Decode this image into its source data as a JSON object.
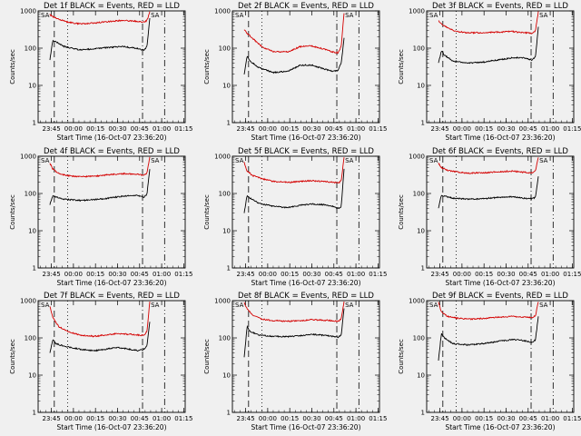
{
  "chart_data": [
    {
      "type": "line",
      "title": "Det 1f BLACK = Events, RED = LLD",
      "xlabel": "Start Time (16-Oct-07 23:36:20)",
      "ylabel": "Counts/sec",
      "ylog": true,
      "ylim": [
        1,
        1000
      ],
      "ytick_labels": [
        "1",
        "10",
        "100",
        "1000"
      ],
      "xtick_labels": [
        "23:45",
        "00:00",
        "00:15",
        "00:30",
        "00:45",
        "01:00",
        "01:15"
      ],
      "markers": [
        "SA",
        "SA"
      ],
      "series": [
        {
          "color": "#000000",
          "x": [
            0,
            2,
            4,
            10,
            20,
            30,
            40,
            50,
            58,
            64,
            66,
            68
          ],
          "values": [
            50,
            160,
            150,
            110,
            90,
            95,
            105,
            110,
            100,
            90,
            110,
            700
          ]
        },
        {
          "color": "#d40000",
          "x": [
            0,
            2,
            6,
            12,
            20,
            30,
            40,
            50,
            58,
            64,
            66,
            68
          ],
          "values": [
            800,
            700,
            600,
            500,
            450,
            470,
            520,
            560,
            530,
            500,
            550,
            1000
          ]
        }
      ]
    },
    {
      "type": "line",
      "title": "Det 2f BLACK = Events, RED = LLD",
      "xlabel": "Start Time (16-Oct-07 23:36:20)",
      "ylabel": "Counts/sec",
      "ylog": true,
      "ylim": [
        1,
        1000
      ],
      "ytick_labels": [
        "1",
        "10",
        "100",
        "1000"
      ],
      "xtick_labels": [
        "23:45",
        "00:00",
        "00:15",
        "00:30",
        "00:45",
        "01:00",
        "01:15"
      ],
      "markers": [
        "SA",
        "SA"
      ],
      "series": [
        {
          "color": "#000000",
          "x": [
            0,
            2,
            4,
            10,
            20,
            30,
            38,
            46,
            54,
            60,
            64,
            66,
            68
          ],
          "values": [
            20,
            60,
            45,
            30,
            22,
            24,
            35,
            35,
            28,
            24,
            26,
            40,
            200
          ]
        },
        {
          "color": "#d40000",
          "x": [
            0,
            2,
            6,
            12,
            20,
            30,
            38,
            46,
            54,
            60,
            64,
            66,
            68
          ],
          "values": [
            320,
            250,
            180,
            110,
            80,
            80,
            110,
            115,
            95,
            80,
            75,
            110,
            1000
          ]
        }
      ]
    },
    {
      "type": "line",
      "title": "Det 3f BLACK = Events, RED = LLD",
      "xlabel": "Start Time (16-Oct-07 23:36:20)",
      "ylabel": "Counts/sec",
      "ylog": true,
      "ylim": [
        1,
        1000
      ],
      "ytick_labels": [
        "1",
        "10",
        "100",
        "1000"
      ],
      "xtick_labels": [
        "23:45",
        "00:00",
        "00:15",
        "00:30",
        "00:45",
        "01:00",
        "01:15"
      ],
      "markers": [
        "SA",
        "SA"
      ],
      "series": [
        {
          "color": "#000000",
          "x": [
            0,
            2,
            4,
            10,
            20,
            30,
            40,
            50,
            58,
            64,
            66,
            68
          ],
          "values": [
            40,
            85,
            65,
            45,
            40,
            42,
            48,
            55,
            55,
            48,
            60,
            400
          ]
        },
        {
          "color": "#d40000",
          "x": [
            0,
            2,
            6,
            12,
            20,
            30,
            40,
            50,
            58,
            64,
            66,
            68
          ],
          "values": [
            550,
            450,
            350,
            280,
            260,
            260,
            270,
            280,
            260,
            250,
            300,
            1000
          ]
        }
      ]
    },
    {
      "type": "line",
      "title": "Det 4f BLACK = Events, RED = LLD",
      "xlabel": "Start Time (16-Oct-07 23:36:20)",
      "ylabel": "Counts/sec",
      "ylog": true,
      "ylim": [
        1,
        1000
      ],
      "ytick_labels": [
        "1",
        "10",
        "100",
        "1000"
      ],
      "xtick_labels": [
        "23:45",
        "00:00",
        "00:15",
        "00:30",
        "00:45",
        "01:00",
        "01:15"
      ],
      "markers": [
        "SA",
        "SA"
      ],
      "series": [
        {
          "color": "#000000",
          "x": [
            0,
            2,
            4,
            10,
            20,
            30,
            40,
            50,
            58,
            64,
            66,
            68
          ],
          "values": [
            50,
            90,
            80,
            70,
            65,
            68,
            75,
            85,
            90,
            80,
            95,
            500
          ]
        },
        {
          "color": "#d40000",
          "x": [
            0,
            2,
            6,
            12,
            20,
            30,
            40,
            50,
            58,
            64,
            66,
            68
          ],
          "values": [
            650,
            450,
            350,
            300,
            280,
            290,
            320,
            340,
            330,
            310,
            350,
            1000
          ]
        }
      ]
    },
    {
      "type": "line",
      "title": "Det 5f BLACK = Events, RED = LLD",
      "xlabel": "Start Time (16-Oct-07 23:36:20)",
      "ylabel": "Counts/sec",
      "ylog": true,
      "ylim": [
        1,
        1000
      ],
      "ytick_labels": [
        "1",
        "10",
        "100",
        "1000"
      ],
      "xtick_labels": [
        "23:45",
        "00:00",
        "00:15",
        "00:30",
        "00:45",
        "01:00",
        "01:15"
      ],
      "markers": [
        "SA",
        "SA"
      ],
      "series": [
        {
          "color": "#000000",
          "x": [
            0,
            2,
            4,
            10,
            20,
            30,
            38,
            46,
            54,
            60,
            64,
            66,
            68
          ],
          "values": [
            30,
            90,
            75,
            55,
            45,
            42,
            48,
            52,
            50,
            45,
            40,
            45,
            500
          ]
        },
        {
          "color": "#d40000",
          "x": [
            0,
            2,
            6,
            12,
            20,
            30,
            38,
            46,
            54,
            60,
            64,
            66,
            68
          ],
          "values": [
            700,
            400,
            300,
            250,
            210,
            200,
            210,
            220,
            210,
            200,
            190,
            220,
            1000
          ]
        }
      ]
    },
    {
      "type": "line",
      "title": "Det 6f BLACK = Events, RED = LLD",
      "xlabel": "Start Time (16-Oct-07 23:36:20)",
      "ylabel": "Counts/sec",
      "ylog": true,
      "ylim": [
        1,
        1000
      ],
      "ytick_labels": [
        "1",
        "10",
        "100",
        "1000"
      ],
      "xtick_labels": [
        "23:45",
        "00:00",
        "00:15",
        "00:30",
        "00:45",
        "01:00",
        "01:15"
      ],
      "markers": [
        "SA",
        "SA"
      ],
      "series": [
        {
          "color": "#000000",
          "x": [
            0,
            2,
            4,
            10,
            20,
            30,
            40,
            50,
            58,
            64,
            66,
            68
          ],
          "values": [
            40,
            90,
            85,
            75,
            70,
            72,
            78,
            82,
            75,
            72,
            80,
            300
          ]
        },
        {
          "color": "#d40000",
          "x": [
            0,
            2,
            6,
            12,
            20,
            30,
            40,
            50,
            58,
            64,
            66,
            68
          ],
          "values": [
            650,
            500,
            420,
            380,
            350,
            360,
            380,
            400,
            370,
            360,
            400,
            1000
          ]
        }
      ]
    },
    {
      "type": "line",
      "title": "Det 7f BLACK = Events, RED = LLD",
      "xlabel": "Start Time (16-Oct-07 23:36:20)",
      "ylabel": "Counts/sec",
      "ylog": true,
      "ylim": [
        1,
        1000
      ],
      "ytick_labels": [
        "1",
        "10",
        "100",
        "1000"
      ],
      "xtick_labels": [
        "23:45",
        "00:00",
        "00:15",
        "00:30",
        "00:45",
        "01:00",
        "01:15"
      ],
      "markers": [
        "SA",
        "SA"
      ],
      "series": [
        {
          "color": "#000000",
          "x": [
            0,
            2,
            4,
            10,
            20,
            30,
            38,
            46,
            54,
            60,
            64,
            66,
            68
          ],
          "values": [
            40,
            90,
            70,
            60,
            50,
            45,
            50,
            55,
            50,
            45,
            50,
            60,
            300
          ]
        },
        {
          "color": "#d40000",
          "x": [
            0,
            2,
            6,
            12,
            20,
            30,
            38,
            46,
            54,
            60,
            64,
            66,
            68
          ],
          "values": [
            700,
            350,
            200,
            150,
            120,
            110,
            120,
            130,
            125,
            120,
            115,
            150,
            1000
          ]
        }
      ]
    },
    {
      "type": "line",
      "title": "Det 8f BLACK = Events, RED = LLD",
      "xlabel": "Start Time (16-Oct-07 23:36:20)",
      "ylabel": "Counts/sec",
      "ylog": true,
      "ylim": [
        1,
        1000
      ],
      "ytick_labels": [
        "1",
        "10",
        "100",
        "1000"
      ],
      "xtick_labels": [
        "23:45",
        "00:00",
        "00:15",
        "00:30",
        "00:45",
        "01:00",
        "01:15"
      ],
      "markers": [
        "SA",
        "SA"
      ],
      "series": [
        {
          "color": "#000000",
          "x": [
            0,
            2,
            4,
            10,
            20,
            30,
            38,
            46,
            54,
            60,
            64,
            66,
            68
          ],
          "values": [
            30,
            200,
            150,
            120,
            110,
            108,
            115,
            125,
            118,
            110,
            105,
            120,
            700
          ]
        },
        {
          "color": "#d40000",
          "x": [
            0,
            2,
            6,
            12,
            20,
            30,
            38,
            46,
            54,
            60,
            64,
            66,
            68
          ],
          "values": [
            900,
            600,
            400,
            320,
            290,
            280,
            290,
            310,
            300,
            290,
            280,
            320,
            1000
          ]
        }
      ]
    },
    {
      "type": "line",
      "title": "Det 9f BLACK = Events, RED = LLD",
      "xlabel": "Start Time (16-Oct-07 23:36:20)",
      "ylabel": "Counts/sec",
      "ylog": true,
      "ylim": [
        1,
        1000
      ],
      "ytick_labels": [
        "1",
        "10",
        "100",
        "1000"
      ],
      "xtick_labels": [
        "23:45",
        "00:00",
        "00:15",
        "00:30",
        "00:45",
        "01:00",
        "01:15"
      ],
      "markers": [
        "SA",
        "SA"
      ],
      "series": [
        {
          "color": "#000000",
          "x": [
            0,
            2,
            4,
            10,
            20,
            30,
            40,
            50,
            58,
            64,
            66,
            68
          ],
          "values": [
            25,
            130,
            100,
            70,
            65,
            70,
            80,
            90,
            85,
            75,
            90,
            400
          ]
        },
        {
          "color": "#d40000",
          "x": [
            0,
            2,
            6,
            12,
            20,
            30,
            40,
            50,
            58,
            64,
            66,
            68
          ],
          "values": [
            900,
            500,
            380,
            340,
            320,
            330,
            360,
            380,
            360,
            350,
            400,
            1000
          ]
        }
      ]
    }
  ]
}
